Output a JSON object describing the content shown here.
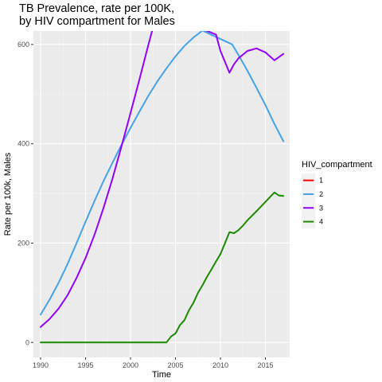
{
  "chart_data": {
    "type": "line",
    "title_line1": "TB Prevalence, rate per 100K,",
    "title_line2": "by HIV compartment for Males",
    "xlabel": "Time",
    "ylabel": "Rate per 100k, Males",
    "xlim": [
      1989.2,
      2017.7
    ],
    "ylim": [
      -30,
      627
    ],
    "xticks": [
      1990,
      1995,
      2000,
      2005,
      2010,
      2015
    ],
    "yticks": [
      0,
      200,
      400,
      600
    ],
    "legend_title": "HIV_compartment",
    "legend_position": "right",
    "grid": true,
    "series": [
      {
        "name": "1",
        "color": "#ff0000",
        "points": []
      },
      {
        "name": "2",
        "color": "#45a2e6",
        "points": [
          [
            1990,
            56
          ],
          [
            1991,
            86
          ],
          [
            1992,
            120
          ],
          [
            1993,
            158
          ],
          [
            1994,
            200
          ],
          [
            1995,
            243
          ],
          [
            1996,
            285
          ],
          [
            1997,
            325
          ],
          [
            1998,
            362
          ],
          [
            1999,
            398
          ],
          [
            2000,
            432
          ],
          [
            2001,
            465
          ],
          [
            2002,
            497
          ],
          [
            2003,
            526
          ],
          [
            2004,
            552
          ],
          [
            2005,
            576
          ],
          [
            2006,
            597
          ],
          [
            2007,
            614
          ],
          [
            2008,
            628
          ],
          [
            2011.3,
            600
          ],
          [
            2012,
            579
          ],
          [
            2013,
            547
          ],
          [
            2014,
            513
          ],
          [
            2015,
            478
          ],
          [
            2016,
            440
          ],
          [
            2017,
            405
          ]
        ]
      },
      {
        "name": "3",
        "color": "#9400f5",
        "points": [
          [
            1990,
            31
          ],
          [
            1991,
            47
          ],
          [
            1992,
            68
          ],
          [
            1993,
            95
          ],
          [
            1994,
            130
          ],
          [
            1995,
            170
          ],
          [
            1996,
            217
          ],
          [
            1997,
            271
          ],
          [
            1998,
            330
          ],
          [
            1999,
            395
          ],
          [
            2000,
            462
          ],
          [
            2001,
            530
          ],
          [
            2002,
            600
          ],
          [
            2003,
            668
          ],
          [
            2009.5,
            620
          ],
          [
            2010,
            587
          ],
          [
            2010.5,
            565
          ],
          [
            2011,
            543
          ],
          [
            2011.5,
            560
          ],
          [
            2012,
            572
          ],
          [
            2013,
            587
          ],
          [
            2014,
            592
          ],
          [
            2015,
            584
          ],
          [
            2016,
            568
          ],
          [
            2017,
            581
          ]
        ]
      },
      {
        "name": "4",
        "color": "#1a8a00",
        "points": [
          [
            1990,
            0
          ],
          [
            1995,
            0
          ],
          [
            2000,
            0
          ],
          [
            2003,
            0
          ],
          [
            2004,
            0
          ],
          [
            2004.5,
            12
          ],
          [
            2005,
            18
          ],
          [
            2005.5,
            35
          ],
          [
            2006,
            45
          ],
          [
            2006.5,
            65
          ],
          [
            2007,
            80
          ],
          [
            2007.5,
            100
          ],
          [
            2008,
            115
          ],
          [
            2008.5,
            132
          ],
          [
            2009,
            147
          ],
          [
            2009.5,
            163
          ],
          [
            2010,
            178
          ],
          [
            2010.5,
            200
          ],
          [
            2011,
            222
          ],
          [
            2011.5,
            220
          ],
          [
            2012,
            226
          ],
          [
            2012.5,
            235
          ],
          [
            2013,
            246
          ],
          [
            2014,
            264
          ],
          [
            2015,
            283
          ],
          [
            2016,
            302
          ],
          [
            2016.5,
            296
          ],
          [
            2017,
            295
          ]
        ]
      }
    ]
  }
}
